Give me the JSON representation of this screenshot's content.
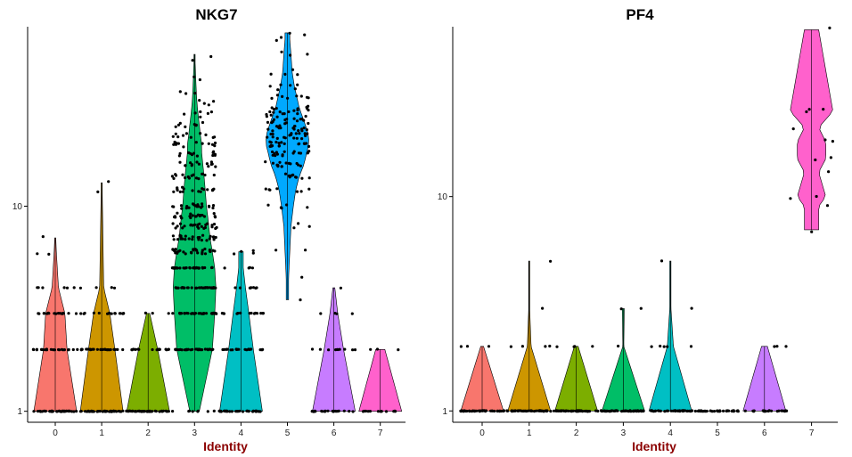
{
  "chart_data": [
    {
      "type": "violin",
      "title": "NKG7",
      "xlabel": "Identity",
      "ylabel": "",
      "yscale": "log",
      "ylim": [
        0.92,
        75
      ],
      "yticks": [
        1,
        10
      ],
      "xlabel_color": "#8B0000",
      "categories": [
        "0",
        "1",
        "2",
        "3",
        "4",
        "5",
        "6",
        "7"
      ],
      "groups": [
        {
          "identity": "0",
          "color": "#F8766D",
          "max": 7,
          "levels": [
            [
              1,
              40
            ],
            [
              2,
              22
            ],
            [
              3,
              18
            ],
            [
              4,
              6
            ],
            [
              6,
              2
            ],
            [
              7,
              1
            ]
          ]
        },
        {
          "identity": "1",
          "color": "#CD9600",
          "max": 13,
          "levels": [
            [
              1,
              42
            ],
            [
              2,
              26
            ],
            [
              3,
              16
            ],
            [
              4,
              4
            ],
            [
              12,
              1
            ],
            [
              13,
              1
            ]
          ]
        },
        {
          "identity": "2",
          "color": "#7CAE00",
          "max": 3,
          "levels": [
            [
              1,
              40
            ],
            [
              2,
              18
            ],
            [
              3,
              3
            ]
          ]
        },
        {
          "identity": "3",
          "color": "#00BE67",
          "max": 55,
          "levels": [
            [
              1,
              8
            ],
            [
              2,
              30
            ],
            [
              3,
              34
            ],
            [
              4,
              36
            ],
            [
              5,
              34
            ],
            [
              6,
              30
            ],
            [
              7,
              26
            ],
            [
              8,
              24
            ],
            [
              9,
              22
            ],
            [
              10,
              20
            ],
            [
              12,
              18
            ],
            [
              14,
              16
            ],
            [
              16,
              14
            ],
            [
              18,
              12
            ],
            [
              20,
              12
            ],
            [
              22,
              10
            ],
            [
              25,
              8
            ],
            [
              28,
              6
            ],
            [
              32,
              4
            ],
            [
              36,
              3
            ],
            [
              42,
              2
            ],
            [
              50,
              1
            ],
            [
              55,
              1
            ]
          ]
        },
        {
          "identity": "4",
          "color": "#00BFC4",
          "max": 6,
          "levels": [
            [
              1,
              38
            ],
            [
              2,
              22
            ],
            [
              3,
              14
            ],
            [
              4,
              8
            ],
            [
              5,
              4
            ],
            [
              6,
              4
            ]
          ]
        },
        {
          "identity": "5",
          "color": "#00A9FF",
          "max": 70,
          "levels": [
            [
              3.5,
              1
            ],
            [
              4.5,
              1
            ],
            [
              6,
              2
            ],
            [
              8,
              3
            ],
            [
              10,
              5
            ],
            [
              12,
              7
            ],
            [
              14,
              10
            ],
            [
              16,
              14
            ],
            [
              18,
              16
            ],
            [
              20,
              18
            ],
            [
              22,
              18
            ],
            [
              24,
              16
            ],
            [
              26,
              14
            ],
            [
              28,
              12
            ],
            [
              30,
              10
            ],
            [
              34,
              8
            ],
            [
              38,
              6
            ],
            [
              45,
              4
            ],
            [
              55,
              3
            ],
            [
              65,
              2
            ],
            [
              70,
              2
            ]
          ]
        },
        {
          "identity": "6",
          "color": "#C77CFF",
          "max": 4,
          "levels": [
            [
              1,
              22
            ],
            [
              2,
              10
            ],
            [
              3,
              4
            ],
            [
              4,
              1
            ]
          ]
        },
        {
          "identity": "7",
          "color": "#FF61CC",
          "max": 2,
          "levels": [
            [
              1,
              14
            ],
            [
              2,
              3
            ]
          ]
        }
      ]
    },
    {
      "type": "violin",
      "title": "PF4",
      "xlabel": "Identity",
      "ylabel": "",
      "yscale": "log",
      "ylim": [
        0.92,
        62
      ],
      "yticks": [
        1,
        10
      ],
      "xlabel_color": "#8B0000",
      "categories": [
        "0",
        "1",
        "2",
        "3",
        "4",
        "5",
        "6",
        "7"
      ],
      "groups": [
        {
          "identity": "0",
          "color": "#F8766D",
          "max": 2,
          "levels": [
            [
              1,
              45
            ],
            [
              2,
              3
            ]
          ]
        },
        {
          "identity": "1",
          "color": "#CD9600",
          "max": 5,
          "levels": [
            [
              1,
              45
            ],
            [
              2,
              4
            ],
            [
              3,
              1
            ],
            [
              5,
              1
            ]
          ]
        },
        {
          "identity": "2",
          "color": "#7CAE00",
          "max": 2,
          "levels": [
            [
              1,
              45
            ],
            [
              2,
              4
            ]
          ]
        },
        {
          "identity": "3",
          "color": "#00BE67",
          "max": 3,
          "levels": [
            [
              1,
              45
            ],
            [
              2,
              1
            ],
            [
              3,
              2
            ]
          ]
        },
        {
          "identity": "4",
          "color": "#00BFC4",
          "max": 5,
          "levels": [
            [
              1,
              35
            ],
            [
              2,
              5
            ],
            [
              3,
              1
            ],
            [
              5,
              1
            ]
          ]
        },
        {
          "identity": "5",
          "color": "#00A9FF",
          "max": 1,
          "levels": [
            [
              1,
              35
            ]
          ]
        },
        {
          "identity": "6",
          "color": "#C77CFF",
          "max": 2,
          "levels": [
            [
              1,
              22
            ],
            [
              2,
              3
            ]
          ]
        },
        {
          "identity": "7",
          "color": "#FF61CC",
          "max": 60,
          "levels": [
            [
              7,
              1
            ],
            [
              9,
              1
            ],
            [
              10,
              2
            ],
            [
              13,
              1
            ],
            [
              15,
              2
            ],
            [
              18,
              2
            ],
            [
              21,
              1
            ],
            [
              25,
              3
            ],
            [
              60,
              1
            ]
          ]
        }
      ]
    }
  ]
}
